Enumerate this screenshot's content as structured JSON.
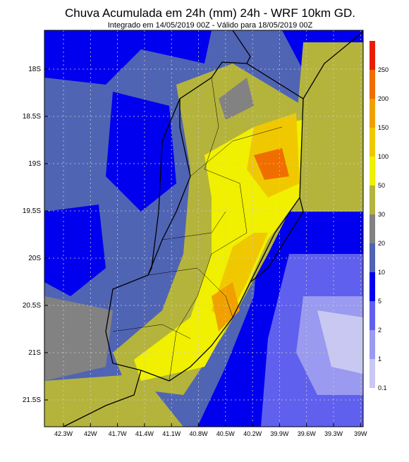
{
  "title": "Chuva Acumulada em 24h (mm) 24h - WRF 10km GD.",
  "subtitle": "Integrado em 14/05/2019 00Z - Válido para 18/05/2019 00Z",
  "lat_labels": [
    "18S",
    "18.5S",
    "19S",
    "19.5S",
    "20S",
    "20.5S",
    "21S",
    "21.5S"
  ],
  "lon_labels": [
    "42.3W",
    "42W",
    "41.7W",
    "41.4W",
    "41.1W",
    "40.8W",
    "40.5W",
    "40.2W",
    "39.9W",
    "39.6W",
    "39.3W",
    "39W"
  ],
  "colorbar": {
    "labels": [
      0.1,
      1,
      2,
      5,
      10,
      20,
      30,
      50,
      100,
      150,
      200,
      250
    ],
    "colors": [
      "#c8c8f2",
      "#9a9af0",
      "#6060ee",
      "#0000ee",
      "#5064b4",
      "#828282",
      "#b4b43c",
      "#f0f000",
      "#f0c800",
      "#f0a000",
      "#f06e00",
      "#e81e00"
    ]
  }
}
